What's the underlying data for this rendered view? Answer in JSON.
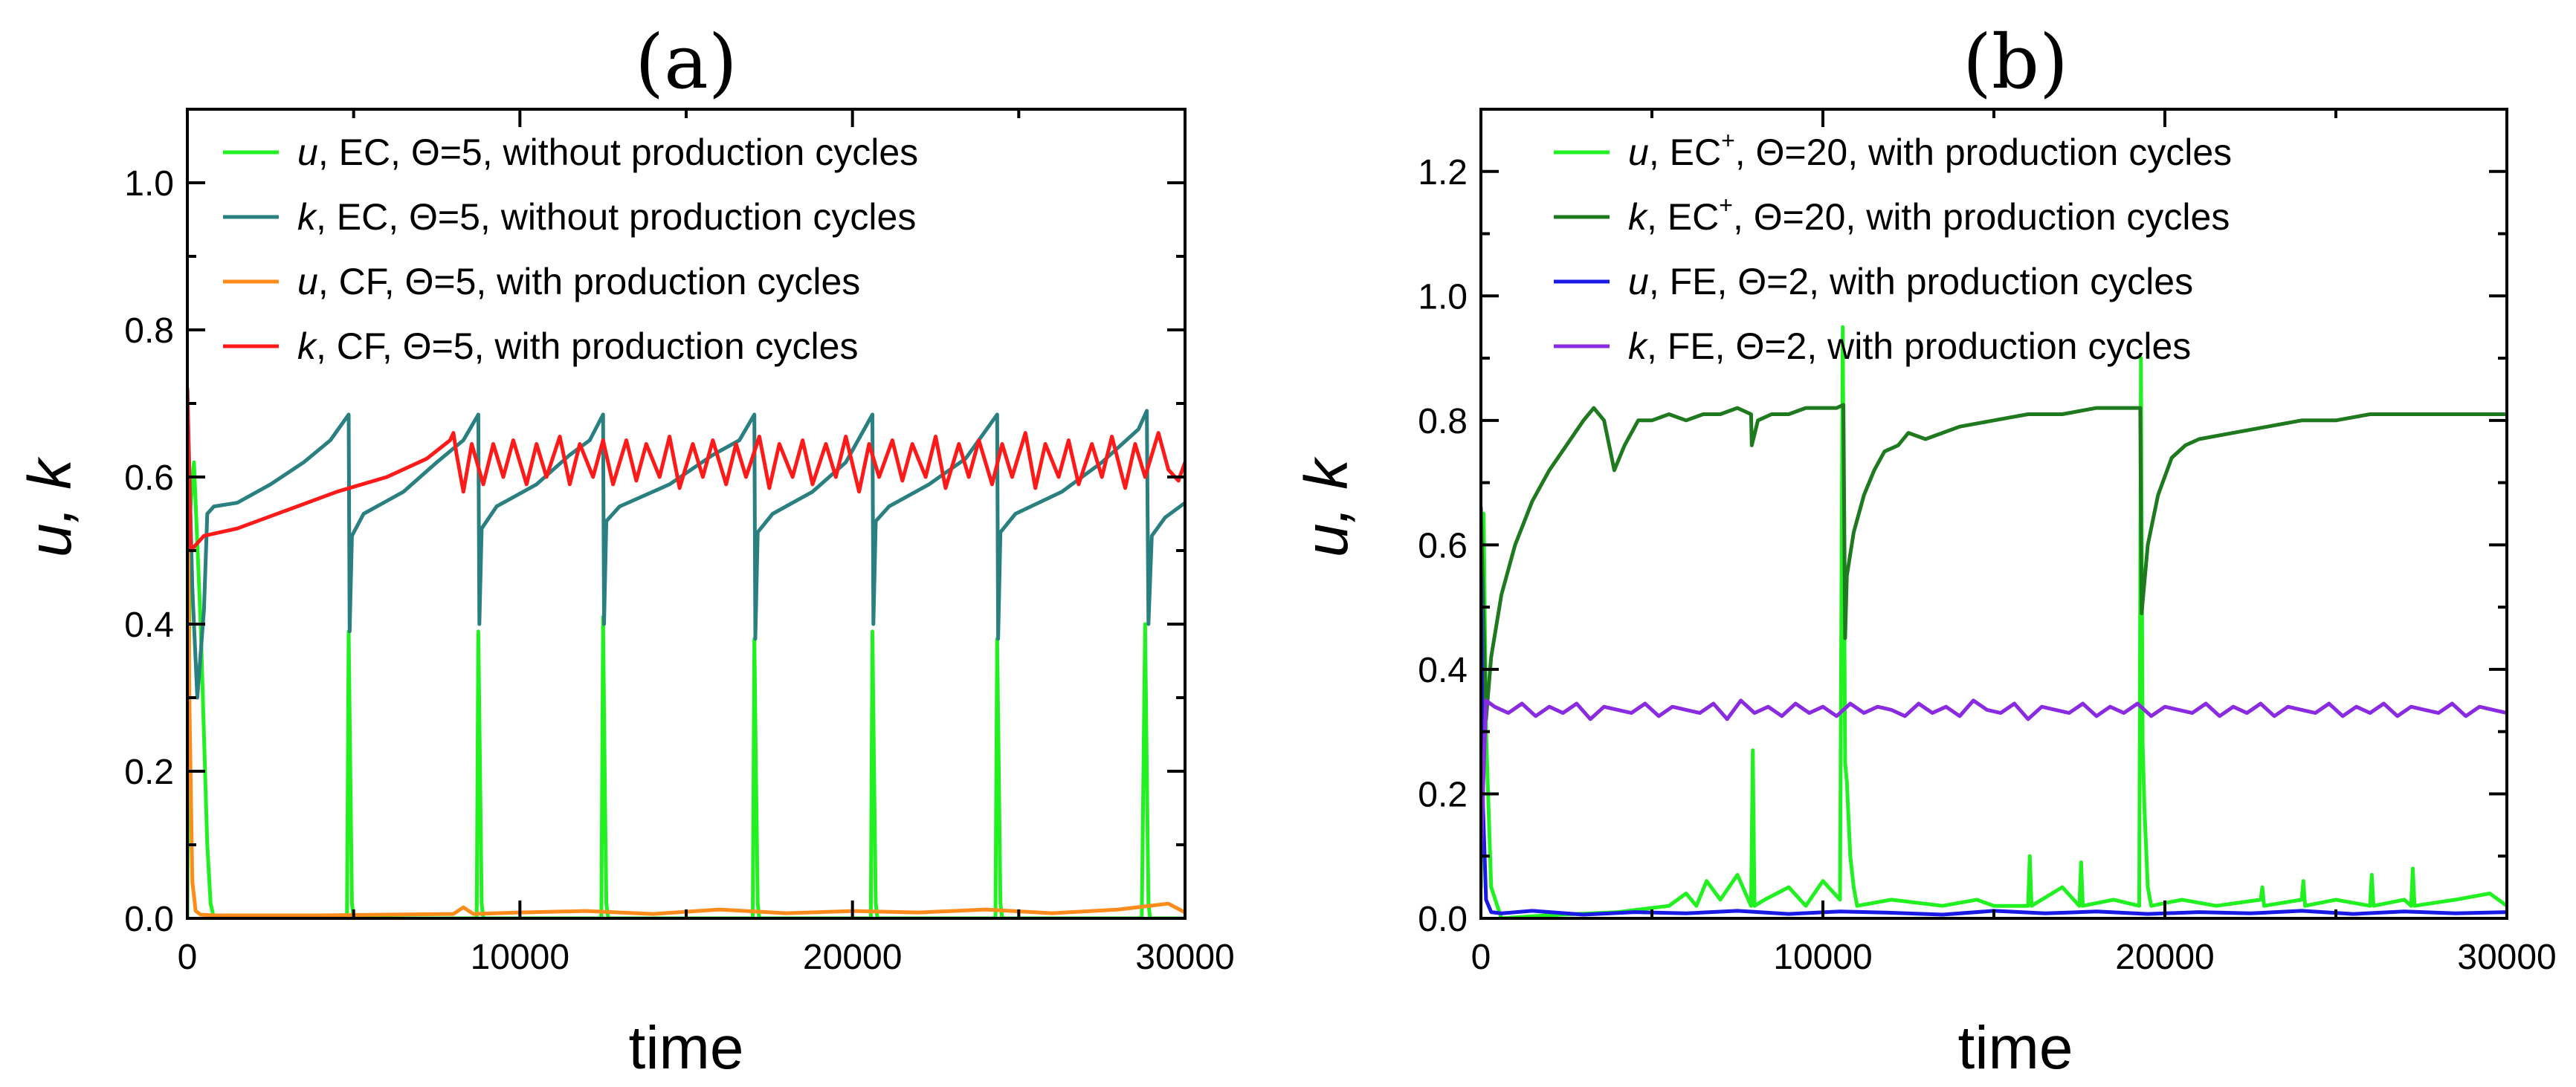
{
  "chart_data": [
    {
      "type": "line",
      "title": "(a)",
      "xlabel": "time",
      "ylabel": "u, k",
      "xlim": [
        0,
        30000
      ],
      "ylim": [
        0,
        1.1
      ],
      "xticks": [
        0,
        10000,
        20000,
        30000
      ],
      "xtick_labels": [
        "0",
        "10000",
        "20000",
        "30000"
      ],
      "yticks": [
        0.0,
        0.2,
        0.4,
        0.6,
        0.8,
        1.0
      ],
      "ytick_labels": [
        "0.0",
        "0.2",
        "0.4",
        "0.6",
        "0.8",
        "1.0"
      ],
      "legend_position": "top-right",
      "series": [
        {
          "name": "u, EC, Θ=5, without production cycles",
          "legend": {
            "var": "u",
            "text": ", EC, Θ=5, without production cycles"
          },
          "color": "#21f021",
          "x": [
            0,
            80,
            200,
            400,
            600,
            700,
            800,
            4800,
            4850,
            4900,
            4950,
            5000,
            8700,
            8750,
            8800,
            8850,
            8900,
            12450,
            12500,
            12550,
            12600,
            12650,
            17000,
            17050,
            17100,
            17150,
            17200,
            20550,
            20600,
            20650,
            20700,
            20750,
            24300,
            24350,
            24400,
            24450,
            24500,
            28700,
            28800,
            28850,
            28900,
            28950,
            30000
          ],
          "y": [
            0.0,
            0.55,
            0.62,
            0.4,
            0.1,
            0.02,
            0.0,
            0.0,
            0.39,
            0.2,
            0.02,
            0.0,
            0.0,
            0.39,
            0.2,
            0.02,
            0.0,
            0.0,
            0.41,
            0.2,
            0.02,
            0.0,
            0.0,
            0.38,
            0.2,
            0.02,
            0.0,
            0.0,
            0.39,
            0.2,
            0.02,
            0.0,
            0.0,
            0.38,
            0.2,
            0.02,
            0.0,
            0.0,
            0.4,
            0.2,
            0.02,
            0.0,
            0.0
          ]
        },
        {
          "name": "k, EC, Θ=5, without production cycles",
          "legend": {
            "var": "k",
            "text": ", EC, Θ=5, without production cycles"
          },
          "color": "#2a7f80",
          "x": [
            0,
            150,
            300,
            500,
            600,
            800,
            1500,
            2500,
            3500,
            4300,
            4850,
            4880,
            4950,
            5300,
            6500,
            7500,
            8300,
            8750,
            8780,
            8850,
            9300,
            10500,
            11500,
            12100,
            12500,
            12530,
            12600,
            13000,
            14500,
            15800,
            16600,
            17050,
            17080,
            17150,
            17600,
            18800,
            19800,
            20600,
            20630,
            20700,
            21100,
            22300,
            23400,
            24350,
            24380,
            24450,
            24900,
            26300,
            27500,
            28600,
            28850,
            28900,
            29000,
            29400,
            30000
          ],
          "y": [
            0.72,
            0.45,
            0.3,
            0.42,
            0.55,
            0.56,
            0.565,
            0.59,
            0.62,
            0.65,
            0.685,
            0.39,
            0.52,
            0.55,
            0.58,
            0.62,
            0.65,
            0.685,
            0.4,
            0.53,
            0.56,
            0.59,
            0.63,
            0.65,
            0.685,
            0.4,
            0.54,
            0.56,
            0.59,
            0.63,
            0.65,
            0.685,
            0.38,
            0.525,
            0.55,
            0.58,
            0.62,
            0.685,
            0.4,
            0.54,
            0.56,
            0.59,
            0.625,
            0.685,
            0.38,
            0.525,
            0.55,
            0.58,
            0.62,
            0.665,
            0.69,
            0.4,
            0.52,
            0.545,
            0.565
          ]
        },
        {
          "name": "u, CF, Θ=5, with production cycles",
          "legend": {
            "var": "u",
            "text": ", CF, Θ=5, with production cycles"
          },
          "color": "#ff8c1a",
          "x": [
            0,
            60,
            150,
            250,
            400,
            800,
            2000,
            4000,
            6000,
            8000,
            8300,
            8600,
            10000,
            12000,
            14000,
            16000,
            18000,
            20000,
            22000,
            24000,
            26000,
            28000,
            29500,
            30000
          ],
          "y": [
            0.7,
            0.3,
            0.05,
            0.01,
            0.005,
            0.004,
            0.004,
            0.004,
            0.005,
            0.006,
            0.015,
            0.006,
            0.008,
            0.01,
            0.006,
            0.012,
            0.007,
            0.01,
            0.008,
            0.012,
            0.007,
            0.012,
            0.02,
            0.008
          ]
        },
        {
          "name": "k, CF, Θ=5, with production cycles",
          "legend": {
            "var": "k",
            "text": ", CF, Θ=5, with production cycles"
          },
          "color": "#ff1a1a",
          "x": [
            0,
            100,
            300,
            500,
            1500,
            3000,
            4500,
            6000,
            7200,
            7900,
            8000,
            8100,
            8300,
            8550,
            8900,
            9200,
            9500,
            9800,
            10200,
            10500,
            10800,
            11200,
            11500,
            11800,
            12200,
            12500,
            12800,
            13200,
            13500,
            13800,
            14200,
            14500,
            14800,
            15200,
            15500,
            15800,
            16200,
            16500,
            16800,
            17200,
            17500,
            17800,
            18200,
            18500,
            18800,
            19200,
            19500,
            19800,
            20200,
            20500,
            20800,
            21200,
            21500,
            21800,
            22200,
            22500,
            22800,
            23200,
            23500,
            23800,
            24200,
            24500,
            24800,
            25200,
            25500,
            25800,
            26200,
            26500,
            26800,
            27200,
            27500,
            27800,
            28200,
            28500,
            28800,
            29200,
            29500,
            29800,
            30000
          ],
          "y": [
            0.72,
            0.5,
            0.51,
            0.52,
            0.53,
            0.555,
            0.58,
            0.6,
            0.625,
            0.65,
            0.66,
            0.63,
            0.58,
            0.645,
            0.59,
            0.645,
            0.6,
            0.65,
            0.59,
            0.645,
            0.6,
            0.655,
            0.59,
            0.645,
            0.6,
            0.65,
            0.59,
            0.65,
            0.595,
            0.645,
            0.6,
            0.655,
            0.585,
            0.645,
            0.6,
            0.65,
            0.59,
            0.645,
            0.6,
            0.655,
            0.585,
            0.645,
            0.6,
            0.65,
            0.59,
            0.645,
            0.6,
            0.655,
            0.58,
            0.645,
            0.6,
            0.65,
            0.595,
            0.645,
            0.6,
            0.655,
            0.585,
            0.645,
            0.6,
            0.65,
            0.59,
            0.645,
            0.6,
            0.66,
            0.585,
            0.645,
            0.6,
            0.65,
            0.59,
            0.645,
            0.6,
            0.655,
            0.585,
            0.645,
            0.6,
            0.66,
            0.61,
            0.595,
            0.62
          ]
        }
      ]
    },
    {
      "type": "line",
      "title": "(b)",
      "xlabel": "time",
      "ylabel": "u, k",
      "xlim": [
        0,
        30000
      ],
      "ylim": [
        0,
        1.3
      ],
      "xticks": [
        0,
        10000,
        20000,
        30000
      ],
      "xtick_labels": [
        "0",
        "10000",
        "20000",
        "30000"
      ],
      "yticks": [
        0.0,
        0.2,
        0.4,
        0.6,
        0.8,
        1.0,
        1.2
      ],
      "ytick_labels": [
        "0.0",
        "0.2",
        "0.4",
        "0.6",
        "0.8",
        "1.0",
        "1.2"
      ],
      "legend_position": "top-right",
      "series": [
        {
          "name": "u, EC+, Θ=20, with production cycles",
          "legend": {
            "var": "u",
            "text": ", EC",
            "sup": "+",
            "text2": ", Θ=20, with production cycles"
          },
          "color": "#21f021",
          "x": [
            0,
            80,
            150,
            300,
            600,
            2000,
            4000,
            5500,
            6000,
            6300,
            6600,
            7000,
            7500,
            7900,
            7950,
            8000,
            8300,
            9000,
            9500,
            10000,
            10500,
            10580,
            10650,
            10700,
            10800,
            10900,
            11000,
            12000,
            13500,
            14500,
            15000,
            16000,
            16050,
            16100,
            17000,
            17500,
            17550,
            17600,
            18500,
            19250,
            19300,
            19350,
            19400,
            19500,
            19600,
            20500,
            21500,
            22800,
            22850,
            22900,
            24000,
            24050,
            24100,
            25000,
            26000,
            26050,
            26100,
            27000,
            27200,
            27250,
            27300,
            28500,
            29500,
            30000
          ],
          "y": [
            0.05,
            0.65,
            0.3,
            0.05,
            0.0,
            0.005,
            0.01,
            0.02,
            0.04,
            0.02,
            0.06,
            0.03,
            0.07,
            0.02,
            0.27,
            0.02,
            0.03,
            0.05,
            0.02,
            0.06,
            0.03,
            0.95,
            0.25,
            0.22,
            0.1,
            0.05,
            0.02,
            0.03,
            0.02,
            0.03,
            0.02,
            0.02,
            0.1,
            0.02,
            0.05,
            0.02,
            0.09,
            0.02,
            0.03,
            0.02,
            0.9,
            0.28,
            0.18,
            0.05,
            0.02,
            0.03,
            0.02,
            0.03,
            0.05,
            0.02,
            0.03,
            0.06,
            0.02,
            0.03,
            0.02,
            0.07,
            0.02,
            0.03,
            0.02,
            0.08,
            0.02,
            0.03,
            0.04,
            0.02
          ]
        },
        {
          "name": "k, EC+, Θ=20, with production cycles",
          "legend": {
            "var": "k",
            "text": ", EC",
            "sup": "+",
            "text2": ", Θ=20, with production cycles"
          },
          "color": "#1f7a1f",
          "x": [
            0,
            150,
            300,
            600,
            1000,
            1500,
            2000,
            2500,
            3000,
            3300,
            3600,
            3900,
            4200,
            4600,
            5000,
            5500,
            6000,
            6500,
            7000,
            7500,
            7900,
            7920,
            8100,
            8500,
            9000,
            9500,
            10000,
            10400,
            10600,
            10650,
            10700,
            10900,
            11200,
            11500,
            11800,
            12200,
            12500,
            13000,
            13500,
            14000,
            15000,
            16000,
            17000,
            18000,
            18500,
            19000,
            19280,
            19320,
            19500,
            19800,
            20200,
            20600,
            21000,
            22000,
            23000,
            24000,
            25000,
            26000,
            27000,
            28000,
            29000,
            30000
          ],
          "y": [
            0.66,
            0.32,
            0.42,
            0.52,
            0.6,
            0.67,
            0.72,
            0.76,
            0.8,
            0.82,
            0.8,
            0.72,
            0.76,
            0.8,
            0.8,
            0.81,
            0.8,
            0.81,
            0.81,
            0.82,
            0.81,
            0.76,
            0.8,
            0.81,
            0.81,
            0.82,
            0.82,
            0.82,
            0.825,
            0.45,
            0.55,
            0.62,
            0.68,
            0.72,
            0.75,
            0.76,
            0.78,
            0.77,
            0.78,
            0.79,
            0.8,
            0.81,
            0.81,
            0.82,
            0.82,
            0.82,
            0.82,
            0.49,
            0.6,
            0.68,
            0.74,
            0.76,
            0.77,
            0.78,
            0.79,
            0.8,
            0.8,
            0.81,
            0.81,
            0.81,
            0.81,
            0.81
          ]
        },
        {
          "name": "u, FE, Θ=2, with production cycles",
          "legend": {
            "var": "u",
            "text": ", FE, Θ=2, with production cycles"
          },
          "color": "#1a1ae6",
          "x": [
            0,
            60,
            150,
            300,
            600,
            1500,
            3000,
            4500,
            6000,
            7500,
            9000,
            10500,
            12000,
            13500,
            15000,
            16500,
            18000,
            19500,
            21000,
            22500,
            24000,
            25500,
            27000,
            28500,
            30000
          ],
          "y": [
            0.55,
            0.18,
            0.03,
            0.01,
            0.008,
            0.012,
            0.006,
            0.01,
            0.008,
            0.012,
            0.007,
            0.011,
            0.009,
            0.006,
            0.012,
            0.008,
            0.011,
            0.007,
            0.01,
            0.008,
            0.012,
            0.007,
            0.011,
            0.008,
            0.01
          ]
        },
        {
          "name": "k, FE, Θ=2, with production cycles",
          "legend": {
            "var": "k",
            "text": ", FE, Θ=2, with production cycles"
          },
          "color": "#8a2be2",
          "x": [
            0,
            150,
            400,
            800,
            1200,
            1600,
            2000,
            2400,
            2800,
            3200,
            3600,
            4000,
            4400,
            4800,
            5200,
            5600,
            6000,
            6400,
            6800,
            7200,
            7600,
            8000,
            8400,
            8800,
            9200,
            9600,
            10000,
            10400,
            10800,
            11200,
            11600,
            12000,
            12400,
            12800,
            13200,
            13600,
            14000,
            14400,
            14800,
            15200,
            15600,
            16000,
            16400,
            16800,
            17200,
            17600,
            18000,
            18400,
            18800,
            19200,
            19600,
            20000,
            20400,
            20800,
            21200,
            21600,
            22000,
            22400,
            22800,
            23200,
            23600,
            24000,
            24400,
            24800,
            25200,
            25600,
            26000,
            26400,
            26800,
            27200,
            27600,
            28000,
            28400,
            28800,
            29200,
            29600,
            30000
          ],
          "y": [
            0.1,
            0.35,
            0.34,
            0.33,
            0.345,
            0.325,
            0.34,
            0.33,
            0.345,
            0.32,
            0.34,
            0.335,
            0.33,
            0.345,
            0.325,
            0.34,
            0.335,
            0.33,
            0.345,
            0.32,
            0.35,
            0.33,
            0.34,
            0.325,
            0.345,
            0.33,
            0.34,
            0.325,
            0.345,
            0.33,
            0.34,
            0.335,
            0.325,
            0.345,
            0.33,
            0.34,
            0.325,
            0.35,
            0.335,
            0.33,
            0.345,
            0.32,
            0.34,
            0.335,
            0.33,
            0.345,
            0.325,
            0.34,
            0.33,
            0.345,
            0.325,
            0.34,
            0.335,
            0.33,
            0.345,
            0.325,
            0.34,
            0.33,
            0.345,
            0.325,
            0.34,
            0.335,
            0.33,
            0.345,
            0.325,
            0.34,
            0.33,
            0.345,
            0.325,
            0.34,
            0.335,
            0.33,
            0.345,
            0.325,
            0.34,
            0.335,
            0.33
          ]
        }
      ]
    }
  ]
}
